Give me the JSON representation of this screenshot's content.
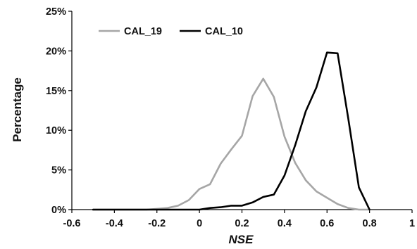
{
  "chart_data": {
    "type": "line",
    "title": "",
    "xlabel": "NSE",
    "ylabel": "Percentage",
    "xlim": [
      -0.6,
      1.0
    ],
    "ylim": [
      0,
      25
    ],
    "x_ticks": [
      -0.6,
      -0.4,
      -0.2,
      0,
      0.2,
      0.4,
      0.6,
      0.8,
      1.0
    ],
    "x_tick_labels": [
      "-0.6",
      "-0.4",
      "-0.2",
      "0",
      "0.2",
      "0.4",
      "0.6",
      "0.8",
      "1"
    ],
    "y_ticks": [
      0,
      5,
      10,
      15,
      20,
      25
    ],
    "y_tick_labels": [
      "0%",
      "5%",
      "10%",
      "15%",
      "20%",
      "25%"
    ],
    "grid": false,
    "legend_position": "top-left",
    "series": [
      {
        "name": "CAL_19",
        "color": "#a6a6a6",
        "x": [
          -0.5,
          -0.45,
          -0.4,
          -0.35,
          -0.3,
          -0.25,
          -0.2,
          -0.15,
          -0.1,
          -0.05,
          0,
          0.05,
          0.1,
          0.15,
          0.2,
          0.25,
          0.3,
          0.35,
          0.4,
          0.45,
          0.5,
          0.55,
          0.6,
          0.65,
          0.7,
          0.75,
          0.8
        ],
        "y": [
          0,
          0,
          0,
          0,
          0,
          0,
          0.1,
          0.2,
          0.5,
          1.2,
          2.6,
          3.2,
          5.8,
          7.6,
          9.3,
          14.3,
          16.5,
          14.2,
          9.2,
          5.9,
          3.7,
          2.3,
          1.5,
          0.7,
          0.2,
          0,
          0
        ]
      },
      {
        "name": "CAL_10",
        "color": "#000000",
        "x": [
          -0.5,
          -0.45,
          -0.4,
          -0.35,
          -0.3,
          -0.25,
          -0.2,
          -0.15,
          -0.1,
          -0.05,
          0,
          0.05,
          0.1,
          0.15,
          0.2,
          0.25,
          0.3,
          0.35,
          0.4,
          0.45,
          0.5,
          0.55,
          0.6,
          0.65,
          0.7,
          0.75,
          0.8
        ],
        "y": [
          0,
          0,
          0,
          0,
          0,
          0,
          0,
          0,
          0,
          0,
          0,
          0.2,
          0.3,
          0.5,
          0.5,
          0.9,
          1.6,
          1.9,
          4.3,
          8.1,
          12.4,
          15.4,
          19.8,
          19.7,
          11.5,
          2.8,
          0
        ]
      }
    ]
  }
}
